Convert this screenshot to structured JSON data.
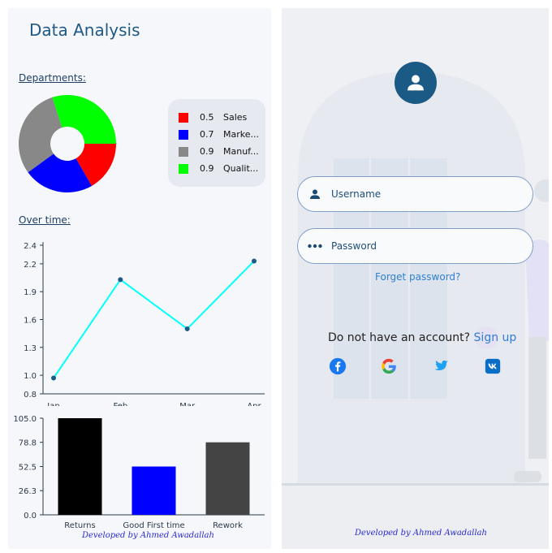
{
  "left_panel": {
    "title": "Data Analysis",
    "departments_label": "Departments:",
    "over_time_label": "Over time:",
    "footer": "Developed by Ahmed Awadallah"
  },
  "right_panel": {
    "username_placeholder": "Username",
    "password_placeholder": "Password",
    "forgot_password": "Forget password?",
    "no_account_text": "Do not have an account?",
    "sign_up": "Sign up",
    "social_icons": [
      "facebook-icon",
      "google-icon",
      "twitter-icon",
      "vk-icon"
    ],
    "footer": "Developed by Ahmed Awadallah",
    "colors": {
      "accent": "#1b5a84",
      "link": "#2f7fd0",
      "field_border": "#7f9fc4"
    }
  },
  "chart_data": [
    {
      "type": "pie",
      "donut": true,
      "legend": [
        {
          "value": "0.5",
          "name": "Sales",
          "color": "#ff0000"
        },
        {
          "value": "0.7",
          "name": "Marke...",
          "color": "#0000ff"
        },
        {
          "value": "0.9",
          "name": "Manuf...",
          "color": "#888888"
        },
        {
          "value": "0.9",
          "name": "Qualit...",
          "color": "#00ff00"
        }
      ],
      "values": [
        0.5,
        0.7,
        0.9,
        0.9
      ]
    },
    {
      "type": "line",
      "categories": [
        "Jan",
        "Feb",
        "Mar",
        "Apr"
      ],
      "values": [
        0.97,
        2.03,
        1.5,
        2.23
      ],
      "yticks": [
        "0.8",
        "1.0",
        "1.3",
        "1.6",
        "1.9",
        "2.2",
        "2.4"
      ],
      "ylim": [
        0.8,
        2.4
      ],
      "color": "#00ffff"
    },
    {
      "type": "bar",
      "categories": [
        "Returns",
        "Good First time",
        "Rework"
      ],
      "values": [
        105.0,
        52.5,
        78.8
      ],
      "colors": [
        "#000000",
        "#0000ff",
        "#444444"
      ],
      "yticks": [
        "0.0",
        "26.3",
        "52.5",
        "78.8",
        "105.0"
      ],
      "ylim": [
        0,
        105
      ]
    }
  ]
}
